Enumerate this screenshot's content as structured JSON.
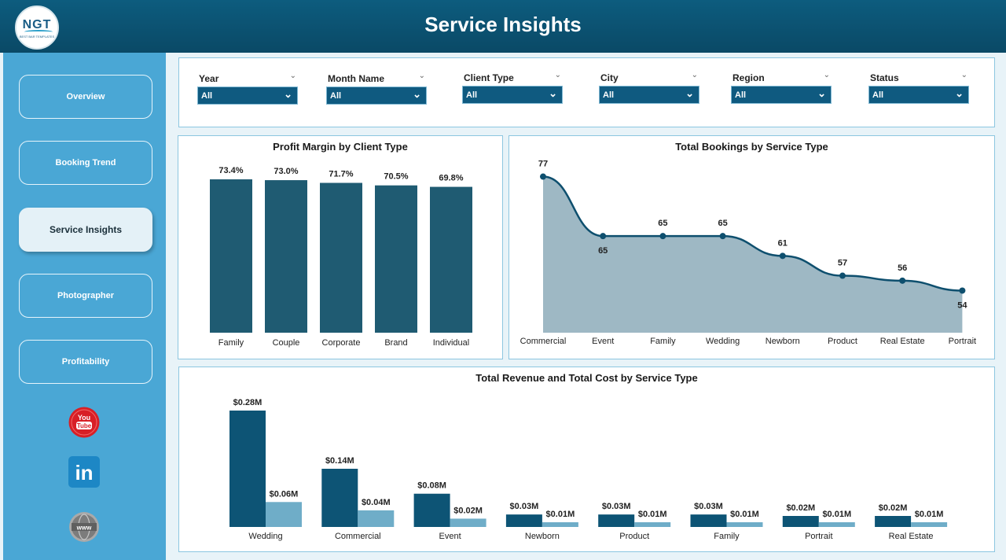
{
  "header": {
    "title": "Service Insights",
    "logo_text": "NGT",
    "logo_sub": "BEST BAR TEMPLATES"
  },
  "sidebar": {
    "items": [
      {
        "label": "Overview",
        "active": false
      },
      {
        "label": "Booking Trend",
        "active": false
      },
      {
        "label": "Service Insights",
        "active": true
      },
      {
        "label": "Photographer",
        "active": false
      },
      {
        "label": "Profitability",
        "active": false
      }
    ],
    "social": [
      {
        "icon": "youtube-icon",
        "text": "You Tube"
      },
      {
        "icon": "linkedin-icon",
        "text": "in"
      },
      {
        "icon": "website-icon",
        "text": "www"
      }
    ]
  },
  "filters": [
    {
      "label": "Year",
      "value": "All"
    },
    {
      "label": "Month Name",
      "value": "All"
    },
    {
      "label": "Client Type",
      "value": "All"
    },
    {
      "label": "City",
      "value": "All"
    },
    {
      "label": "Region",
      "value": "All"
    },
    {
      "label": "Status",
      "value": "All"
    }
  ],
  "colors": {
    "bar_dark": "#1f5b72",
    "revenue": "#0d5475",
    "cost": "#6fadc8",
    "area_fill": "#9eb8c4",
    "line": "#0e4f6e"
  },
  "chart_data": [
    {
      "type": "bar",
      "title": "Profit Margin by Client Type",
      "categories": [
        "Family",
        "Couple",
        "Corporate",
        "Brand",
        "Individual"
      ],
      "values": [
        73.4,
        73.0,
        71.7,
        70.5,
        69.8
      ],
      "labels": [
        "73.4%",
        "73.0%",
        "71.7%",
        "70.5%",
        "69.8%"
      ],
      "ylim": [
        0,
        80
      ]
    },
    {
      "type": "area",
      "title": "Total Bookings by Service Type",
      "categories": [
        "Commercial",
        "Event",
        "Family",
        "Wedding",
        "Newborn",
        "Product",
        "Real Estate",
        "Portrait"
      ],
      "values": [
        77,
        65,
        65,
        65,
        61,
        57,
        56,
        54
      ],
      "ylim": [
        50,
        80
      ]
    },
    {
      "type": "bar",
      "title": "Total Revenue and Total Cost by Service Type",
      "categories": [
        "Wedding",
        "Commercial",
        "Event",
        "Newborn",
        "Product",
        "Family",
        "Portrait",
        "Real Estate"
      ],
      "series": [
        {
          "values": [
            0.28,
            0.14,
            0.08,
            0.03,
            0.03,
            0.03,
            0.02,
            0.02
          ],
          "labels": [
            "$0.28M",
            "$0.14M",
            "$0.08M",
            "$0.03M",
            "$0.03M",
            "$0.03M",
            "$0.02M",
            "$0.02M"
          ]
        },
        {
          "values": [
            0.06,
            0.04,
            0.02,
            0.01,
            0.01,
            0.01,
            0.01,
            0.01
          ],
          "labels": [
            "$0.06M",
            "$0.04M",
            "$0.02M",
            "$0.01M",
            "$0.01M",
            "$0.01M",
            "$0.01M",
            "$0.01M"
          ]
        }
      ],
      "ylim": [
        0,
        0.3
      ]
    }
  ]
}
